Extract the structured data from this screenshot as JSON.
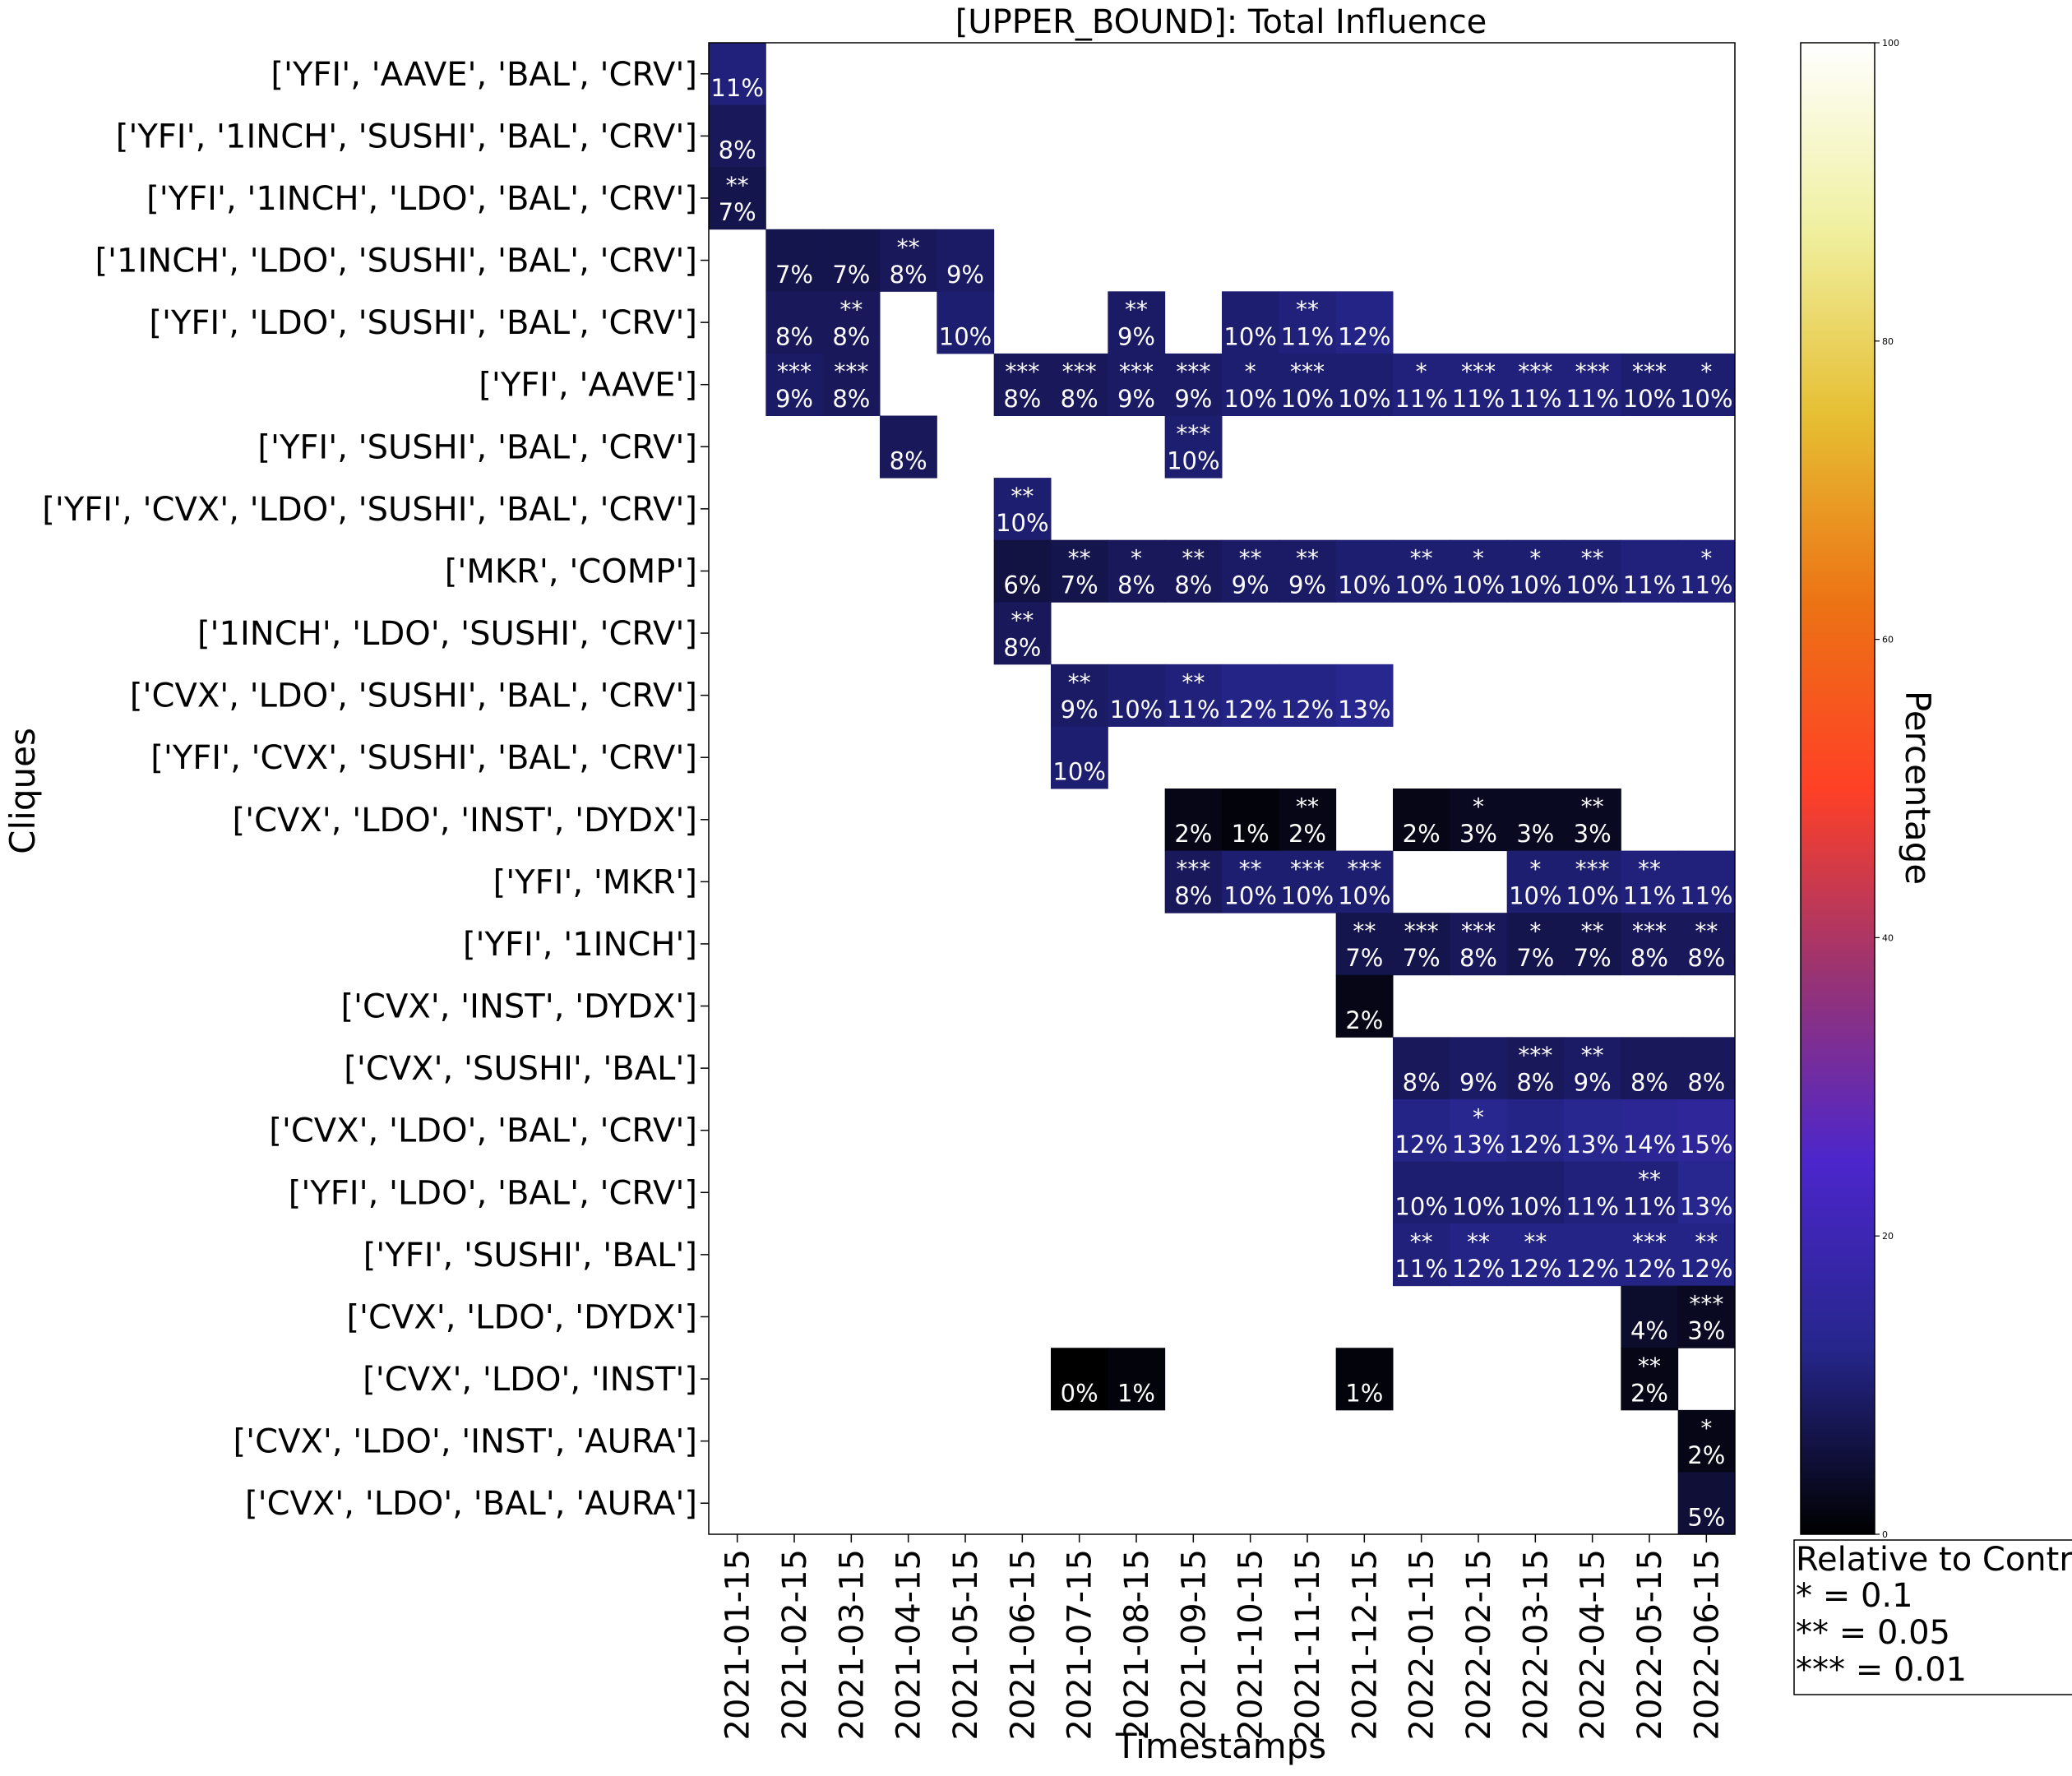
{
  "chart_data": {
    "type": "heatmap",
    "title": "[UPPER_BOUND]: Total Influence",
    "xlabel": "Timestamps",
    "ylabel": "Cliques",
    "colorbar": {
      "label": "Percentage",
      "range": [
        0,
        100
      ],
      "ticks": [
        "0",
        "20",
        "40",
        "60",
        "80",
        "100"
      ],
      "colormap": "CMRmap"
    },
    "significance_legend": {
      "lines": [
        "Relative to Contr",
        "* = 0.1",
        "** = 0.05",
        "*** = 0.01"
      ]
    },
    "x": [
      "2021-01-15",
      "2021-02-15",
      "2021-03-15",
      "2021-04-15",
      "2021-05-15",
      "2021-06-15",
      "2021-07-15",
      "2021-08-15",
      "2021-09-15",
      "2021-10-15",
      "2021-11-15",
      "2021-12-15",
      "2022-01-15",
      "2022-02-15",
      "2022-03-15",
      "2022-04-15",
      "2022-05-15",
      "2022-06-15"
    ],
    "y": [
      "['YFI', 'AAVE', 'BAL', 'CRV']",
      "['YFI', '1INCH', 'SUSHI', 'BAL', 'CRV']",
      "['YFI', '1INCH', 'LDO', 'BAL', 'CRV']",
      "['1INCH', 'LDO', 'SUSHI', 'BAL', 'CRV']",
      "['YFI', 'LDO', 'SUSHI', 'BAL', 'CRV']",
      "['YFI', 'AAVE']",
      "['YFI', 'SUSHI', 'BAL', 'CRV']",
      "['YFI', 'CVX', 'LDO', 'SUSHI', 'BAL', 'CRV']",
      "['MKR', 'COMP']",
      "['1INCH', 'LDO', 'SUSHI', 'CRV']",
      "['CVX', 'LDO', 'SUSHI', 'BAL', 'CRV']",
      "['YFI', 'CVX', 'SUSHI', 'BAL', 'CRV']",
      "['CVX', 'LDO', 'INST', 'DYDX']",
      "['YFI', 'MKR']",
      "['YFI', '1INCH']",
      "['CVX', 'INST', 'DYDX']",
      "['CVX', 'SUSHI', 'BAL']",
      "['CVX', 'LDO', 'BAL', 'CRV']",
      "['YFI', 'LDO', 'BAL', 'CRV']",
      "['YFI', 'SUSHI', 'BAL']",
      "['CVX', 'LDO', 'DYDX']",
      "['CVX', 'LDO', 'INST']",
      "['CVX', 'LDO', 'INST', 'AURA']",
      "['CVX', 'LDO', 'BAL', 'AURA']"
    ],
    "cells": [
      {
        "row": 0,
        "col": 0,
        "value": 11,
        "label": "11%",
        "sig": ""
      },
      {
        "row": 1,
        "col": 0,
        "value": 8,
        "label": "8%",
        "sig": ""
      },
      {
        "row": 2,
        "col": 0,
        "value": 7,
        "label": "7%",
        "sig": "**"
      },
      {
        "row": 3,
        "col": 1,
        "value": 7,
        "label": "7%",
        "sig": ""
      },
      {
        "row": 3,
        "col": 2,
        "value": 7,
        "label": "7%",
        "sig": ""
      },
      {
        "row": 3,
        "col": 3,
        "value": 8,
        "label": "8%",
        "sig": "**"
      },
      {
        "row": 3,
        "col": 4,
        "value": 9,
        "label": "9%",
        "sig": ""
      },
      {
        "row": 4,
        "col": 1,
        "value": 8,
        "label": "8%",
        "sig": ""
      },
      {
        "row": 4,
        "col": 2,
        "value": 8,
        "label": "8%",
        "sig": "**"
      },
      {
        "row": 4,
        "col": 4,
        "value": 10,
        "label": "10%",
        "sig": ""
      },
      {
        "row": 4,
        "col": 7,
        "value": 9,
        "label": "9%",
        "sig": "**"
      },
      {
        "row": 4,
        "col": 9,
        "value": 10,
        "label": "10%",
        "sig": ""
      },
      {
        "row": 4,
        "col": 10,
        "value": 11,
        "label": "11%",
        "sig": "**"
      },
      {
        "row": 4,
        "col": 11,
        "value": 12,
        "label": "12%",
        "sig": ""
      },
      {
        "row": 5,
        "col": 1,
        "value": 9,
        "label": "9%",
        "sig": "***"
      },
      {
        "row": 5,
        "col": 2,
        "value": 8,
        "label": "8%",
        "sig": "***"
      },
      {
        "row": 5,
        "col": 5,
        "value": 8,
        "label": "8%",
        "sig": "***"
      },
      {
        "row": 5,
        "col": 6,
        "value": 8,
        "label": "8%",
        "sig": "***"
      },
      {
        "row": 5,
        "col": 7,
        "value": 9,
        "label": "9%",
        "sig": "***"
      },
      {
        "row": 5,
        "col": 8,
        "value": 9,
        "label": "9%",
        "sig": "***"
      },
      {
        "row": 5,
        "col": 9,
        "value": 10,
        "label": "10%",
        "sig": "*"
      },
      {
        "row": 5,
        "col": 10,
        "value": 10,
        "label": "10%",
        "sig": "***"
      },
      {
        "row": 5,
        "col": 11,
        "value": 10,
        "label": "10%",
        "sig": ""
      },
      {
        "row": 5,
        "col": 12,
        "value": 11,
        "label": "11%",
        "sig": "*"
      },
      {
        "row": 5,
        "col": 13,
        "value": 11,
        "label": "11%",
        "sig": "***"
      },
      {
        "row": 5,
        "col": 14,
        "value": 11,
        "label": "11%",
        "sig": "***"
      },
      {
        "row": 5,
        "col": 15,
        "value": 11,
        "label": "11%",
        "sig": "***"
      },
      {
        "row": 5,
        "col": 16,
        "value": 10,
        "label": "10%",
        "sig": "***"
      },
      {
        "row": 5,
        "col": 17,
        "value": 10,
        "label": "10%",
        "sig": "*"
      },
      {
        "row": 6,
        "col": 3,
        "value": 8,
        "label": "8%",
        "sig": ""
      },
      {
        "row": 6,
        "col": 8,
        "value": 10,
        "label": "10%",
        "sig": "***"
      },
      {
        "row": 7,
        "col": 5,
        "value": 10,
        "label": "10%",
        "sig": "**"
      },
      {
        "row": 8,
        "col": 5,
        "value": 6,
        "label": "6%",
        "sig": ""
      },
      {
        "row": 8,
        "col": 6,
        "value": 7,
        "label": "7%",
        "sig": "**"
      },
      {
        "row": 8,
        "col": 7,
        "value": 8,
        "label": "8%",
        "sig": "*"
      },
      {
        "row": 8,
        "col": 8,
        "value": 8,
        "label": "8%",
        "sig": "**"
      },
      {
        "row": 8,
        "col": 9,
        "value": 9,
        "label": "9%",
        "sig": "**"
      },
      {
        "row": 8,
        "col": 10,
        "value": 9,
        "label": "9%",
        "sig": "**"
      },
      {
        "row": 8,
        "col": 11,
        "value": 10,
        "label": "10%",
        "sig": ""
      },
      {
        "row": 8,
        "col": 12,
        "value": 10,
        "label": "10%",
        "sig": "**"
      },
      {
        "row": 8,
        "col": 13,
        "value": 10,
        "label": "10%",
        "sig": "*"
      },
      {
        "row": 8,
        "col": 14,
        "value": 10,
        "label": "10%",
        "sig": "*"
      },
      {
        "row": 8,
        "col": 15,
        "value": 10,
        "label": "10%",
        "sig": "**"
      },
      {
        "row": 8,
        "col": 16,
        "value": 11,
        "label": "11%",
        "sig": ""
      },
      {
        "row": 8,
        "col": 17,
        "value": 11,
        "label": "11%",
        "sig": "*"
      },
      {
        "row": 9,
        "col": 5,
        "value": 8,
        "label": "8%",
        "sig": "**"
      },
      {
        "row": 10,
        "col": 6,
        "value": 9,
        "label": "9%",
        "sig": "**"
      },
      {
        "row": 10,
        "col": 7,
        "value": 10,
        "label": "10%",
        "sig": ""
      },
      {
        "row": 10,
        "col": 8,
        "value": 11,
        "label": "11%",
        "sig": "**"
      },
      {
        "row": 10,
        "col": 9,
        "value": 12,
        "label": "12%",
        "sig": ""
      },
      {
        "row": 10,
        "col": 10,
        "value": 12,
        "label": "12%",
        "sig": ""
      },
      {
        "row": 10,
        "col": 11,
        "value": 13,
        "label": "13%",
        "sig": ""
      },
      {
        "row": 11,
        "col": 6,
        "value": 10,
        "label": "10%",
        "sig": ""
      },
      {
        "row": 12,
        "col": 8,
        "value": 2,
        "label": "2%",
        "sig": ""
      },
      {
        "row": 12,
        "col": 9,
        "value": 1,
        "label": "1%",
        "sig": ""
      },
      {
        "row": 12,
        "col": 10,
        "value": 2,
        "label": "2%",
        "sig": "**"
      },
      {
        "row": 12,
        "col": 12,
        "value": 2,
        "label": "2%",
        "sig": ""
      },
      {
        "row": 12,
        "col": 13,
        "value": 3,
        "label": "3%",
        "sig": "*"
      },
      {
        "row": 12,
        "col": 14,
        "value": 3,
        "label": "3%",
        "sig": ""
      },
      {
        "row": 12,
        "col": 15,
        "value": 3,
        "label": "3%",
        "sig": "**"
      },
      {
        "row": 13,
        "col": 8,
        "value": 8,
        "label": "8%",
        "sig": "***"
      },
      {
        "row": 13,
        "col": 9,
        "value": 10,
        "label": "10%",
        "sig": "**"
      },
      {
        "row": 13,
        "col": 10,
        "value": 10,
        "label": "10%",
        "sig": "***"
      },
      {
        "row": 13,
        "col": 11,
        "value": 10,
        "label": "10%",
        "sig": "***"
      },
      {
        "row": 13,
        "col": 14,
        "value": 10,
        "label": "10%",
        "sig": "*"
      },
      {
        "row": 13,
        "col": 15,
        "value": 10,
        "label": "10%",
        "sig": "***"
      },
      {
        "row": 13,
        "col": 16,
        "value": 11,
        "label": "11%",
        "sig": "**"
      },
      {
        "row": 13,
        "col": 17,
        "value": 11,
        "label": "11%",
        "sig": ""
      },
      {
        "row": 14,
        "col": 11,
        "value": 7,
        "label": "7%",
        "sig": "**"
      },
      {
        "row": 14,
        "col": 12,
        "value": 7,
        "label": "7%",
        "sig": "***"
      },
      {
        "row": 14,
        "col": 13,
        "value": 8,
        "label": "8%",
        "sig": "***"
      },
      {
        "row": 14,
        "col": 14,
        "value": 7,
        "label": "7%",
        "sig": "*"
      },
      {
        "row": 14,
        "col": 15,
        "value": 7,
        "label": "7%",
        "sig": "**"
      },
      {
        "row": 14,
        "col": 16,
        "value": 8,
        "label": "8%",
        "sig": "***"
      },
      {
        "row": 14,
        "col": 17,
        "value": 8,
        "label": "8%",
        "sig": "**"
      },
      {
        "row": 15,
        "col": 11,
        "value": 2,
        "label": "2%",
        "sig": ""
      },
      {
        "row": 16,
        "col": 12,
        "value": 8,
        "label": "8%",
        "sig": ""
      },
      {
        "row": 16,
        "col": 13,
        "value": 9,
        "label": "9%",
        "sig": ""
      },
      {
        "row": 16,
        "col": 14,
        "value": 8,
        "label": "8%",
        "sig": "***"
      },
      {
        "row": 16,
        "col": 15,
        "value": 9,
        "label": "9%",
        "sig": "**"
      },
      {
        "row": 16,
        "col": 16,
        "value": 8,
        "label": "8%",
        "sig": ""
      },
      {
        "row": 16,
        "col": 17,
        "value": 8,
        "label": "8%",
        "sig": ""
      },
      {
        "row": 17,
        "col": 12,
        "value": 12,
        "label": "12%",
        "sig": ""
      },
      {
        "row": 17,
        "col": 13,
        "value": 13,
        "label": "13%",
        "sig": "*"
      },
      {
        "row": 17,
        "col": 14,
        "value": 12,
        "label": "12%",
        "sig": ""
      },
      {
        "row": 17,
        "col": 15,
        "value": 13,
        "label": "13%",
        "sig": ""
      },
      {
        "row": 17,
        "col": 16,
        "value": 14,
        "label": "14%",
        "sig": ""
      },
      {
        "row": 17,
        "col": 17,
        "value": 15,
        "label": "15%",
        "sig": ""
      },
      {
        "row": 18,
        "col": 12,
        "value": 10,
        "label": "10%",
        "sig": ""
      },
      {
        "row": 18,
        "col": 13,
        "value": 10,
        "label": "10%",
        "sig": ""
      },
      {
        "row": 18,
        "col": 14,
        "value": 10,
        "label": "10%",
        "sig": ""
      },
      {
        "row": 18,
        "col": 15,
        "value": 11,
        "label": "11%",
        "sig": ""
      },
      {
        "row": 18,
        "col": 16,
        "value": 11,
        "label": "11%",
        "sig": "**"
      },
      {
        "row": 18,
        "col": 17,
        "value": 13,
        "label": "13%",
        "sig": ""
      },
      {
        "row": 19,
        "col": 12,
        "value": 11,
        "label": "11%",
        "sig": "**"
      },
      {
        "row": 19,
        "col": 13,
        "value": 12,
        "label": "12%",
        "sig": "**"
      },
      {
        "row": 19,
        "col": 14,
        "value": 12,
        "label": "12%",
        "sig": "**"
      },
      {
        "row": 19,
        "col": 15,
        "value": 12,
        "label": "12%",
        "sig": ""
      },
      {
        "row": 19,
        "col": 16,
        "value": 12,
        "label": "12%",
        "sig": "***"
      },
      {
        "row": 19,
        "col": 17,
        "value": 12,
        "label": "12%",
        "sig": "**"
      },
      {
        "row": 20,
        "col": 16,
        "value": 4,
        "label": "4%",
        "sig": ""
      },
      {
        "row": 20,
        "col": 17,
        "value": 3,
        "label": "3%",
        "sig": "***"
      },
      {
        "row": 21,
        "col": 6,
        "value": 0,
        "label": "0%",
        "sig": ""
      },
      {
        "row": 21,
        "col": 7,
        "value": 1,
        "label": "1%",
        "sig": ""
      },
      {
        "row": 21,
        "col": 11,
        "value": 1,
        "label": "1%",
        "sig": ""
      },
      {
        "row": 21,
        "col": 16,
        "value": 2,
        "label": "2%",
        "sig": "**"
      },
      {
        "row": 22,
        "col": 17,
        "value": 2,
        "label": "2%",
        "sig": "*"
      },
      {
        "row": 23,
        "col": 17,
        "value": 5,
        "label": "5%",
        "sig": ""
      }
    ]
  }
}
